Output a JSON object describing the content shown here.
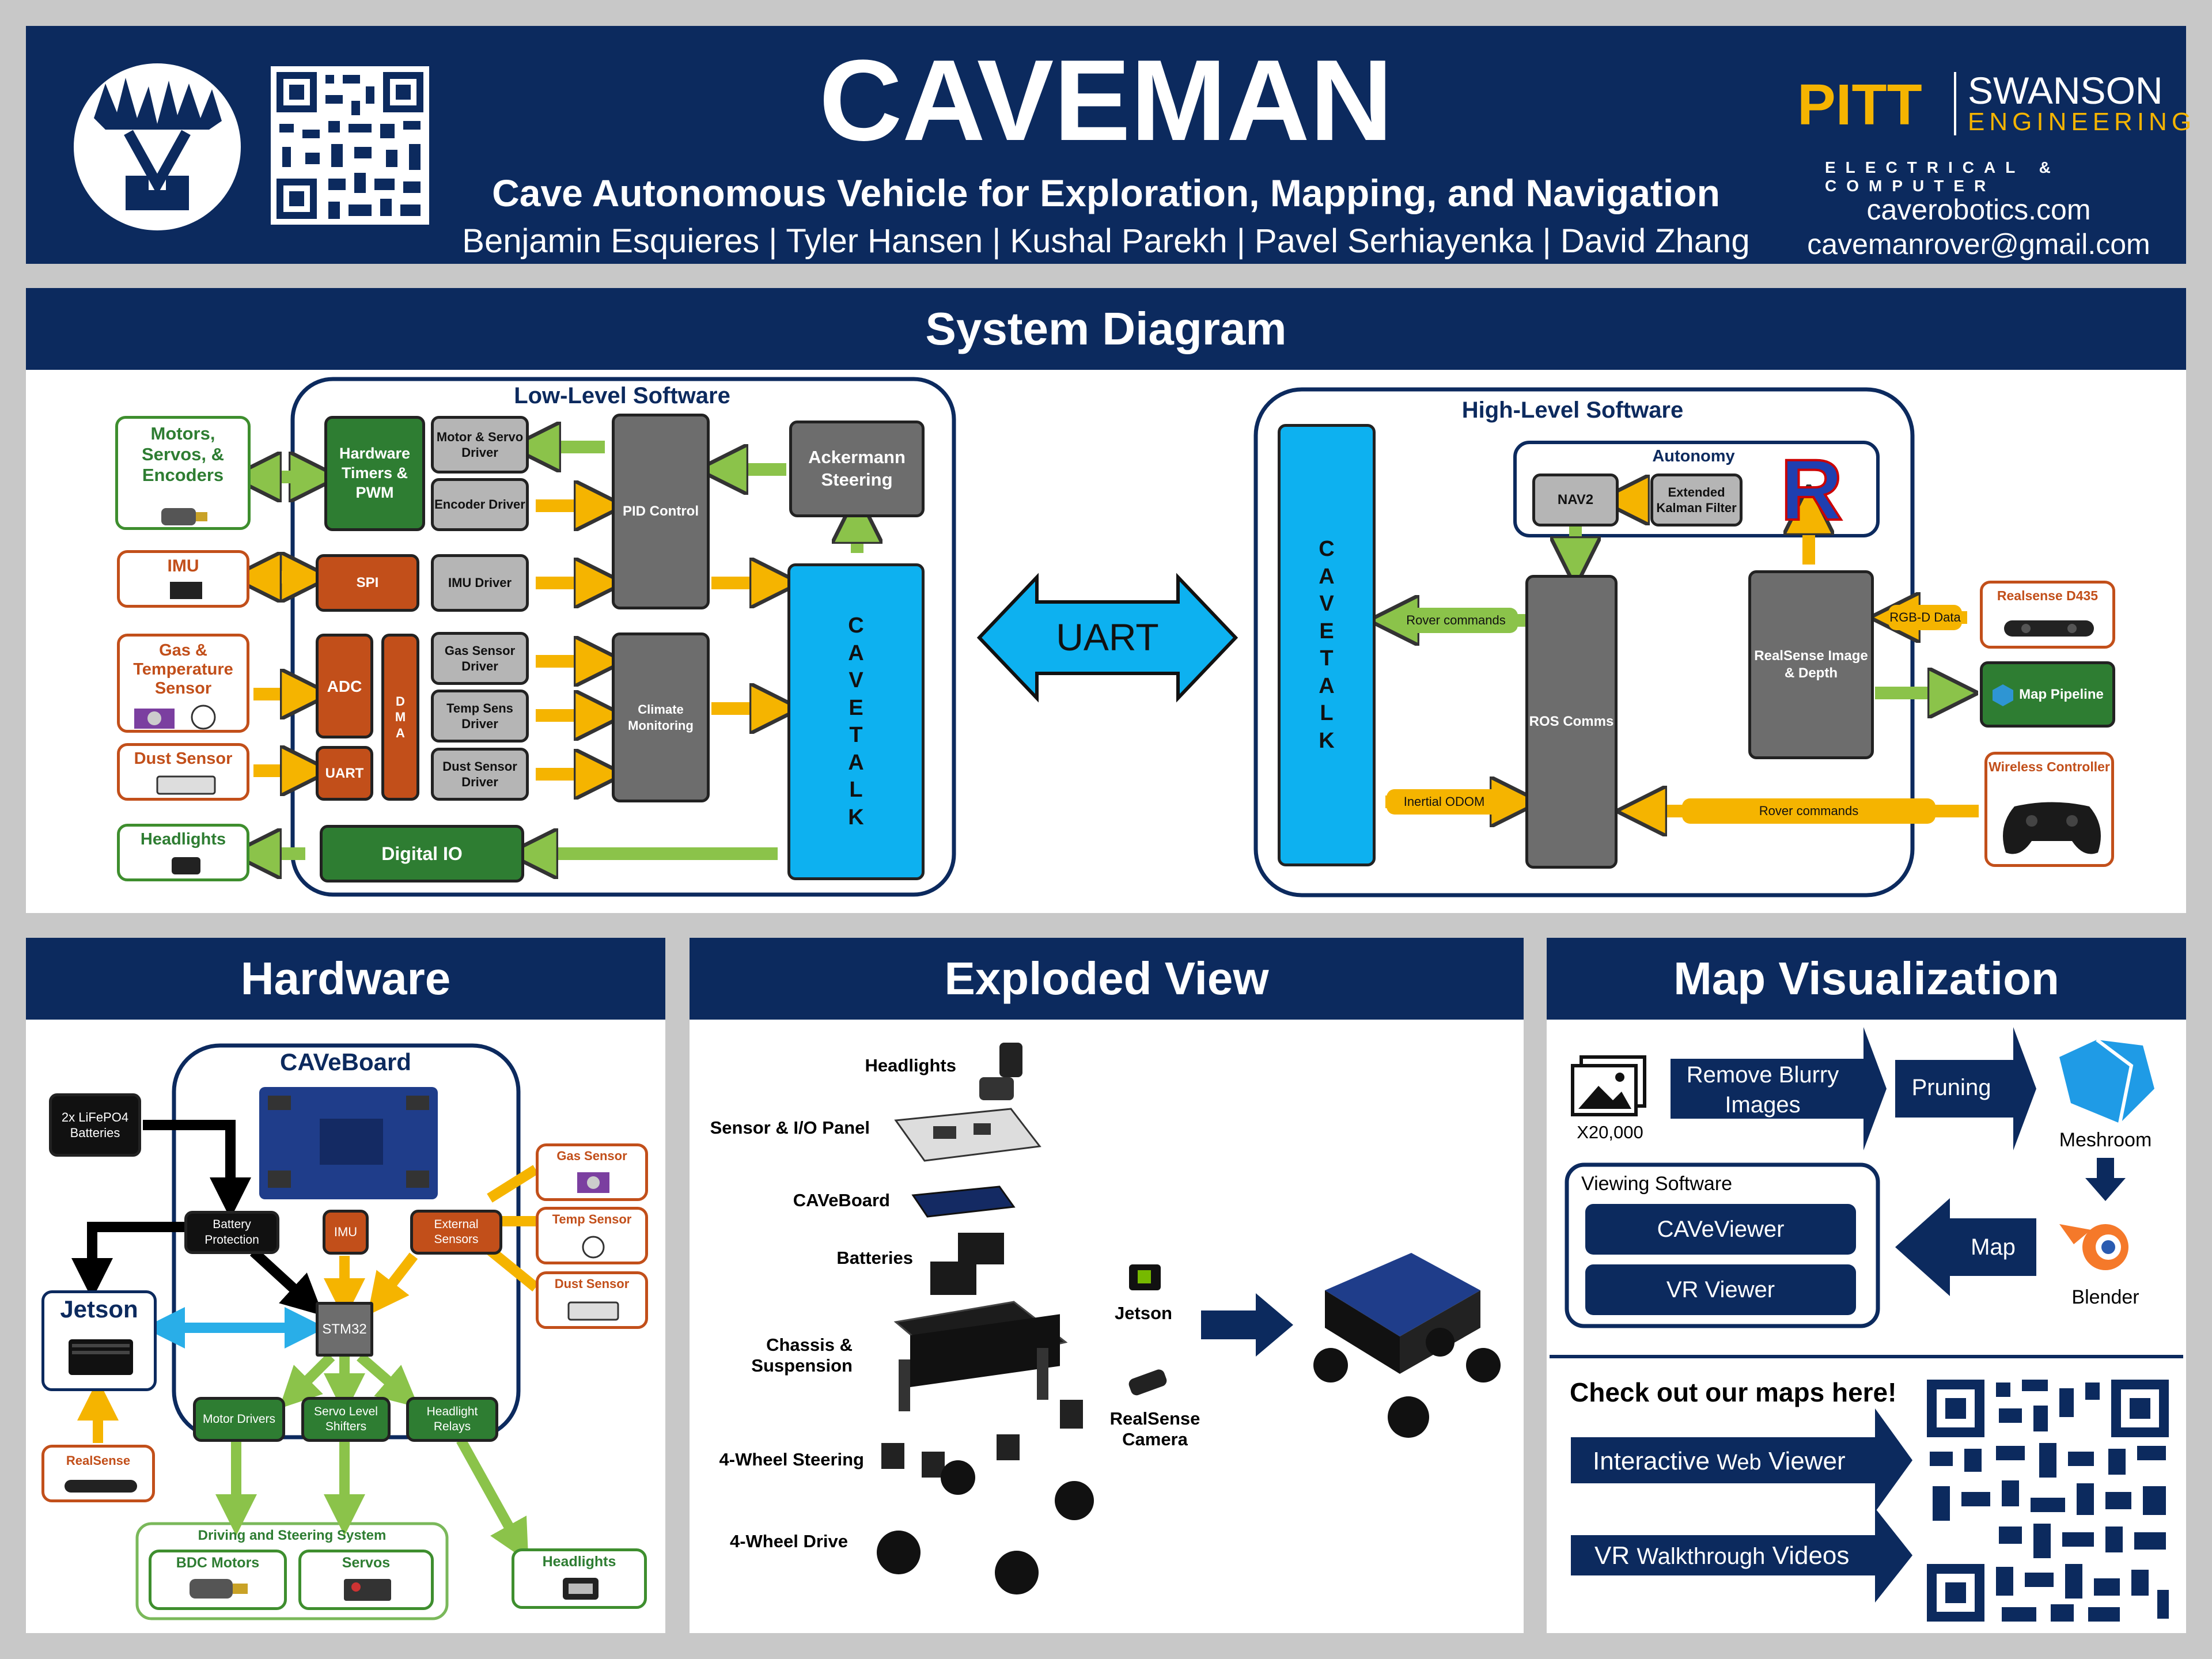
{
  "header": {
    "title": "CAVEMAN",
    "subtitle": "Cave Autonomous Vehicle for Exploration, Mapping, and Navigation",
    "authors": "Benjamin Esquieres | Tyler Hansen | Kushal Parekh | Pavel Serhiayenka | David Zhang",
    "pitt": "PITT",
    "swanson": "SWANSON",
    "engineering": "ENGINEERING",
    "dept": "ELECTRICAL & COMPUTER",
    "website": "caverobotics.com",
    "email": "cavemanrover@gmail.com"
  },
  "system": {
    "title": "System Diagram",
    "low_title": "Low-Level Software",
    "high_title": "High-Level Software",
    "motors": "Motors, Servos, & Encoders",
    "imu": "IMU",
    "gas_temp": "Gas & Temperature Sensor",
    "dust": "Dust Sensor",
    "headlights": "Headlights",
    "hw_timers": "Hardware Timers & PWM",
    "motor_driver": "Motor & Servo Driver",
    "encoder_driver": "Encoder Driver",
    "spi": "SPI",
    "imu_driver": "IMU Driver",
    "adc": "ADC",
    "dma": [
      "D",
      "M",
      "A"
    ],
    "uart_small": "UART",
    "gas_driver": "Gas Sensor Driver",
    "temp_driver": "Temp Sens Driver",
    "dust_driver": "Dust Sensor Driver",
    "pid": "PID Control",
    "climate": "Climate Monitoring",
    "ackermann": "Ackermann Steering",
    "digital_io": "Digital IO",
    "cavetalk": [
      "C",
      "A",
      "V",
      "E",
      "T",
      "A",
      "L",
      "K"
    ],
    "uart_big": "UART",
    "autonomy": "Autonomy",
    "nav2": "NAV2",
    "ekf": "Extended Kalman Filter",
    "ros_logo": "R",
    "ros_comms": "ROS Comms",
    "realsense_img": "RealSense Image & Depth",
    "rover_cmds_1": "Rover commands",
    "rover_cmds_2": "Rover commands",
    "inertial_odom": "Inertial ODOM",
    "rgbd": "RGB-D Data",
    "realsense_d435": "Realsense D435",
    "map_pipeline": "Map Pipeline",
    "wireless": "Wireless Controller"
  },
  "hardware": {
    "title": "Hardware",
    "caveboard": "CAVeBoard",
    "batteries": "2x LiFePO4 Batteries",
    "battery_protection": "Battery Protection",
    "imu": "IMU",
    "external_sensors": "External Sensors",
    "gas_sensor": "Gas Sensor",
    "temp_sensor": "Temp Sensor",
    "dust_sensor": "Dust Sensor",
    "jetson": "Jetson",
    "stm32": "STM32",
    "realsense": "RealSense",
    "motor_drivers": "Motor Drivers",
    "servo_shifters": "Servo Level Shifters",
    "headlight_relays": "Headlight Relays",
    "driving_system": "Driving and Steering System",
    "bdc_motors": "BDC Motors",
    "servos": "Servos",
    "headlights": "Headlights"
  },
  "exploded": {
    "title": "Exploded View",
    "labels": [
      "Headlights",
      "Sensor & I/O Panel",
      "CAVeBoard",
      "Batteries",
      "Chassis & Suspension",
      "4-Wheel Steering",
      "4-Wheel Drive"
    ],
    "jetson": "Jetson",
    "realsense": "RealSense Camera"
  },
  "map": {
    "title": "Map Visualization",
    "image_count": "X20,000",
    "remove_blurry": "Remove Blurry Images",
    "pruning": "Pruning",
    "meshroom": "Meshroom",
    "blender": "Blender",
    "map_step": "Map",
    "viewing_software": "Viewing Software",
    "caveviewer": "CAVeViewer",
    "vr_viewer": "VR Viewer",
    "check_out": "Check out our maps here!",
    "web_viewer_a": "Interactive ",
    "web_viewer_b": "Web",
    "web_viewer_c": " Viewer",
    "vr_videos_a": "VR ",
    "vr_videos_b": "Walkthrough",
    "vr_videos_c": " Videos"
  },
  "colors": {
    "navy": "#0c2a5e",
    "green": "#2e7d32",
    "orange": "#c24f1a",
    "cyan": "#0db1f0",
    "gold": "#f5b400",
    "arrow_green": "#8bc34a"
  }
}
